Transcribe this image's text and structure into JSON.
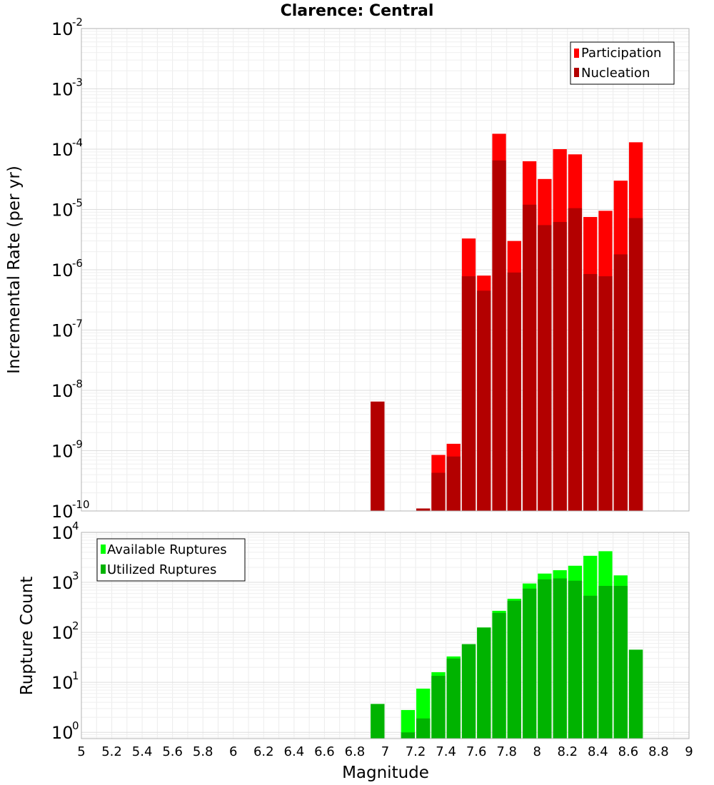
{
  "chart_data": [
    {
      "type": "bar",
      "title": "Clarence: Central",
      "xlabel": "",
      "ylabel": "Incremental Rate (per yr)",
      "y_scale": "log",
      "ylim": [
        1e-10,
        0.01
      ],
      "xlim": [
        5,
        9
      ],
      "y_ticks": [
        {
          "base": "10",
          "exp": "-2"
        },
        {
          "base": "10",
          "exp": "-3"
        },
        {
          "base": "10",
          "exp": "-4"
        },
        {
          "base": "10",
          "exp": "-5"
        },
        {
          "base": "10",
          "exp": "-6"
        },
        {
          "base": "10",
          "exp": "-7"
        },
        {
          "base": "10",
          "exp": "-8"
        },
        {
          "base": "10",
          "exp": "-9"
        },
        {
          "base": "10",
          "exp": "-10"
        }
      ],
      "grid": true,
      "legend_position": "top-right",
      "bar_width": 0.1,
      "series": [
        {
          "name": "Participation",
          "color": "#ff0000",
          "points": [
            {
              "x": 6.95,
              "y": 6.5e-09
            },
            {
              "x": 7.25,
              "y": 1.1e-10
            },
            {
              "x": 7.35,
              "y": 8.5e-10
            },
            {
              "x": 7.45,
              "y": 1.3e-09
            },
            {
              "x": 7.55,
              "y": 3.3e-06
            },
            {
              "x": 7.65,
              "y": 8e-07
            },
            {
              "x": 7.75,
              "y": 0.00018
            },
            {
              "x": 7.85,
              "y": 3e-06
            },
            {
              "x": 7.95,
              "y": 6.3e-05
            },
            {
              "x": 8.05,
              "y": 3.2e-05
            },
            {
              "x": 8.15,
              "y": 0.0001
            },
            {
              "x": 8.25,
              "y": 8.2e-05
            },
            {
              "x": 8.35,
              "y": 7.5e-06
            },
            {
              "x": 8.45,
              "y": 9.5e-06
            },
            {
              "x": 8.55,
              "y": 3e-05
            },
            {
              "x": 8.65,
              "y": 0.00013
            }
          ]
        },
        {
          "name": "Nucleation",
          "color": "#b30000",
          "points": [
            {
              "x": 6.95,
              "y": 6.5e-09
            },
            {
              "x": 7.25,
              "y": 1.1e-10
            },
            {
              "x": 7.35,
              "y": 4.3e-10
            },
            {
              "x": 7.45,
              "y": 8e-10
            },
            {
              "x": 7.55,
              "y": 7.8e-07
            },
            {
              "x": 7.65,
              "y": 4.5e-07
            },
            {
              "x": 7.75,
              "y": 6.5e-05
            },
            {
              "x": 7.85,
              "y": 9e-07
            },
            {
              "x": 7.95,
              "y": 1.2e-05
            },
            {
              "x": 8.05,
              "y": 5.5e-06
            },
            {
              "x": 8.15,
              "y": 6.2e-06
            },
            {
              "x": 8.25,
              "y": 1.05e-05
            },
            {
              "x": 8.35,
              "y": 8.5e-07
            },
            {
              "x": 8.45,
              "y": 7.8e-07
            },
            {
              "x": 8.55,
              "y": 1.8e-06
            },
            {
              "x": 8.65,
              "y": 7.2e-06
            }
          ]
        }
      ]
    },
    {
      "type": "bar",
      "title": "",
      "xlabel": "Magnitude",
      "ylabel": "Rupture Count",
      "y_scale": "log",
      "ylim": [
        0.75,
        10000
      ],
      "xlim": [
        5,
        9
      ],
      "y_ticks": [
        {
          "value": 10000,
          "base": "10",
          "exp": "4"
        },
        {
          "value": 1000,
          "base": "10",
          "exp": "3"
        },
        {
          "value": 100,
          "base": "10",
          "exp": "2"
        },
        {
          "value": 10,
          "base": "10",
          "exp": "1"
        },
        {
          "value": 1,
          "base": "10",
          "exp": "0"
        }
      ],
      "x_ticks": [
        "5",
        "5.2",
        "5.4",
        "5.6",
        "5.8",
        "6",
        "6.2",
        "6.4",
        "6.6",
        "6.8",
        "7",
        "7.2",
        "7.4",
        "7.6",
        "7.8",
        "8",
        "8.2",
        "8.4",
        "8.6",
        "8.8",
        "9"
      ],
      "grid": true,
      "legend_position": "top-left",
      "bar_width": 0.1,
      "series": [
        {
          "name": "Available Ruptures",
          "color": "#00ff00",
          "points": [
            {
              "x": 6.95,
              "y": 3.7
            },
            {
              "x": 7.15,
              "y": 2.8
            },
            {
              "x": 7.25,
              "y": 7.5
            },
            {
              "x": 7.35,
              "y": 16
            },
            {
              "x": 7.45,
              "y": 33
            },
            {
              "x": 7.55,
              "y": 58
            },
            {
              "x": 7.65,
              "y": 125
            },
            {
              "x": 7.75,
              "y": 270
            },
            {
              "x": 7.85,
              "y": 470
            },
            {
              "x": 7.95,
              "y": 950
            },
            {
              "x": 8.05,
              "y": 1500
            },
            {
              "x": 8.15,
              "y": 1750
            },
            {
              "x": 8.25,
              "y": 2150
            },
            {
              "x": 8.35,
              "y": 3400
            },
            {
              "x": 8.45,
              "y": 4200
            },
            {
              "x": 8.55,
              "y": 1380
            },
            {
              "x": 8.65,
              "y": 45
            }
          ]
        },
        {
          "name": "Utilized Ruptures",
          "color": "#00b300",
          "points": [
            {
              "x": 6.95,
              "y": 3.7
            },
            {
              "x": 7.15,
              "y": 1
            },
            {
              "x": 7.25,
              "y": 1.9
            },
            {
              "x": 7.35,
              "y": 13.5
            },
            {
              "x": 7.45,
              "y": 30
            },
            {
              "x": 7.55,
              "y": 58
            },
            {
              "x": 7.65,
              "y": 125
            },
            {
              "x": 7.75,
              "y": 245
            },
            {
              "x": 7.85,
              "y": 430
            },
            {
              "x": 7.95,
              "y": 750
            },
            {
              "x": 8.05,
              "y": 1150
            },
            {
              "x": 8.15,
              "y": 1200
            },
            {
              "x": 8.25,
              "y": 1080
            },
            {
              "x": 8.35,
              "y": 540
            },
            {
              "x": 8.45,
              "y": 850
            },
            {
              "x": 8.55,
              "y": 850
            },
            {
              "x": 8.65,
              "y": 45
            }
          ]
        }
      ]
    }
  ]
}
